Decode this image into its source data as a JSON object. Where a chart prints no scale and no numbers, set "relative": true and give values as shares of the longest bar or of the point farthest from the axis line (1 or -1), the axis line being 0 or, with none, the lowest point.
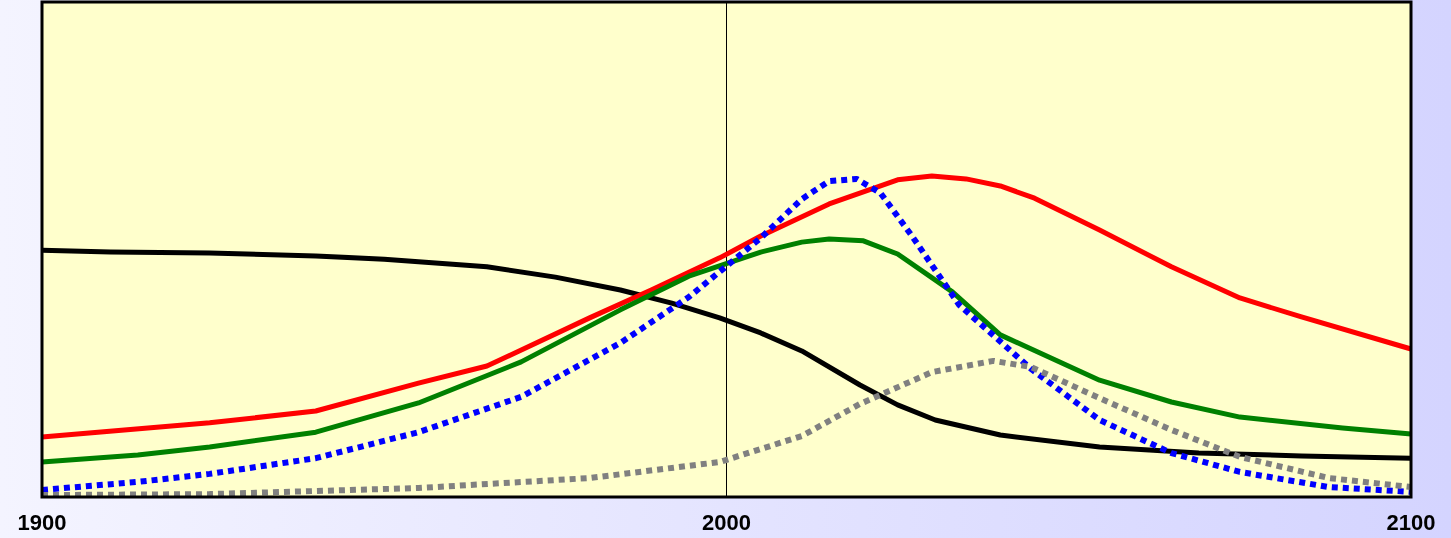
{
  "chart_data": {
    "type": "line",
    "relative": true,
    "xlim": [
      1900,
      2100
    ],
    "xticks": [
      1900,
      2000,
      2100
    ],
    "ref_lines": [
      {
        "axis": "x",
        "value": 2000,
        "color": "#000000",
        "line_style": "solid"
      }
    ],
    "series": [
      {
        "color": "#000000",
        "line_style": "solid",
        "x": [
          1900,
          1910,
          1924.5,
          1940,
          1950,
          1965,
          1975,
          1984.5,
          1992,
          1999,
          2005,
          2011,
          2019.5,
          2025,
          2030.5,
          2040,
          2054.5,
          2069,
          2084,
          2100
        ],
        "values": [
          0.769,
          0.763,
          0.76,
          0.751,
          0.741,
          0.717,
          0.685,
          0.645,
          0.604,
          0.558,
          0.511,
          0.455,
          0.349,
          0.287,
          0.24,
          0.193,
          0.156,
          0.137,
          0.128,
          0.121
        ]
      },
      {
        "color": "#ff0000",
        "line_style": "solid",
        "x": [
          1900,
          1924.5,
          1940,
          1955,
          1965,
          1980,
          1989,
          1999,
          2005,
          2015,
          2025,
          2030,
          2035,
          2040,
          2045,
          2054.5,
          2065,
          2075,
          2084,
          2100
        ],
        "values": [
          0.187,
          0.231,
          0.268,
          0.355,
          0.408,
          0.558,
          0.645,
          0.745,
          0.813,
          0.913,
          0.988,
          1,
          0.991,
          0.969,
          0.931,
          0.832,
          0.717,
          0.62,
          0.561,
          0.461
        ]
      },
      {
        "color": "#008000",
        "line_style": "solid",
        "x": [
          1900,
          1914,
          1924.5,
          1940,
          1955,
          1970,
          1984.5,
          1994.5,
          2005,
          2011,
          2015,
          2020,
          2025,
          2033,
          2040,
          2054.5,
          2065,
          2075,
          2090,
          2100
        ],
        "values": [
          0.109,
          0.131,
          0.156,
          0.202,
          0.293,
          0.421,
          0.583,
          0.688,
          0.763,
          0.794,
          0.804,
          0.798,
          0.757,
          0.639,
          0.505,
          0.364,
          0.296,
          0.249,
          0.215,
          0.196
        ]
      },
      {
        "color": "#0000ff",
        "line_style": "dotted",
        "x": [
          1900,
          1914,
          1924.5,
          1940,
          1955,
          1970,
          1984.5,
          1994.5,
          2005,
          2011,
          2015,
          2019,
          2022.5,
          2027,
          2034,
          2044.5,
          2054.5,
          2065,
          2075,
          2088,
          2100
        ],
        "values": [
          0.022,
          0.047,
          0.072,
          0.121,
          0.202,
          0.312,
          0.48,
          0.623,
          0.807,
          0.928,
          0.984,
          0.991,
          0.947,
          0.816,
          0.598,
          0.399,
          0.24,
          0.137,
          0.078,
          0.031,
          0.016
        ]
      },
      {
        "color": "#808080",
        "line_style": "dotted",
        "x": [
          1900,
          1924.5,
          1955,
          1980,
          1999,
          2011,
          2019.5,
          2030,
          2039,
          2044.5,
          2054.5,
          2065,
          2075,
          2088,
          2100
        ],
        "values": [
          0.006,
          0.009,
          0.028,
          0.059,
          0.109,
          0.19,
          0.29,
          0.389,
          0.424,
          0.405,
          0.308,
          0.209,
          0.125,
          0.059,
          0.031
        ]
      }
    ]
  }
}
